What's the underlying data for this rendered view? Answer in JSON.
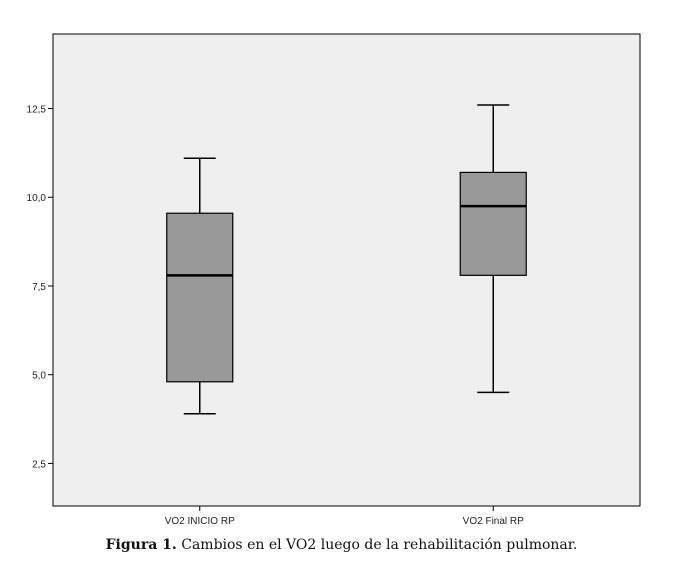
{
  "chart_data": {
    "type": "boxplot",
    "categories": [
      "VO2 INICIO RP",
      "VO2 Final RP"
    ],
    "boxes": [
      {
        "label": "VO2 INICIO RP",
        "min": 3.9,
        "q1": 4.8,
        "median": 7.8,
        "q3": 9.55,
        "max": 11.1
      },
      {
        "label": "VO2 Final RP",
        "min": 4.5,
        "q1": 7.8,
        "median": 9.75,
        "q3": 10.7,
        "max": 12.6
      }
    ],
    "y_ticks": [
      2.5,
      5.0,
      7.5,
      10.0,
      12.5
    ],
    "y_tick_labels": [
      "2,5",
      "5,0",
      "7,5",
      "10,0",
      "12,5"
    ],
    "ylim": [
      1.3,
      14.6
    ],
    "colors": {
      "plot_background": "#efefef",
      "box_fill": "#999999",
      "stroke": "#000000"
    },
    "grid": false
  },
  "caption": {
    "bold": "Figura 1.",
    "text": " Cambios en el VO2 luego de la rehabilitación pulmonar."
  }
}
